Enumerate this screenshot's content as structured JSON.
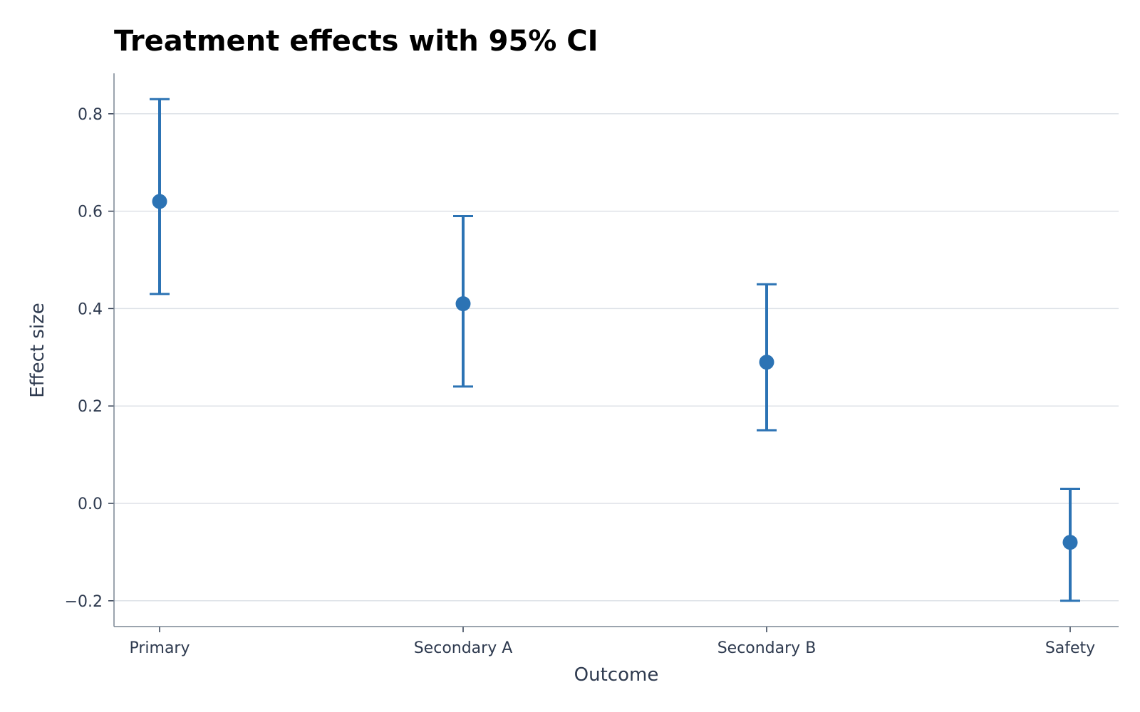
{
  "chart_data": {
    "type": "scatter",
    "title": "Treatment effects with 95% CI",
    "xlabel": "Outcome",
    "ylabel": "Effect size",
    "categories": [
      "Primary",
      "Secondary A",
      "Secondary B",
      "Safety"
    ],
    "values": [
      0.62,
      0.41,
      0.29,
      -0.08
    ],
    "ci_lower": [
      0.43,
      0.24,
      0.15,
      -0.2
    ],
    "ci_upper": [
      0.83,
      0.59,
      0.45,
      0.03
    ],
    "yticks": [
      -0.2,
      0.0,
      0.2,
      0.4,
      0.6,
      0.8
    ],
    "ytick_labels": [
      "−0.2",
      "0.0",
      "0.2",
      "0.4",
      "0.6",
      "0.8"
    ],
    "ylim": [
      -0.25,
      0.88
    ],
    "grid": "horizontal",
    "color": "#2c73b4"
  }
}
